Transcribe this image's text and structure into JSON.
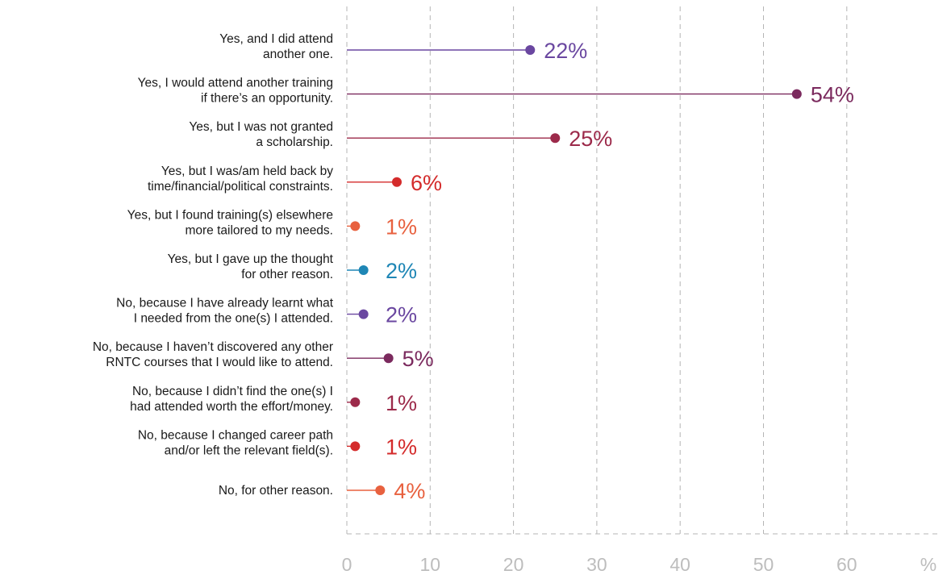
{
  "chart_data": {
    "type": "lollipop",
    "x_unit": "%",
    "xlim": [
      0,
      70
    ],
    "x_ticks": [
      0,
      10,
      20,
      30,
      40,
      50,
      60
    ],
    "grid": "vertical dashed",
    "series": [
      {
        "values": [
          {
            "label_lines": [
              "Yes, and I did attend",
              "another one."
            ],
            "value": 22,
            "value_label": "22%",
            "color": "#6a47a0"
          },
          {
            "label_lines": [
              "Yes, I would attend another training",
              "if there’s an opportunity."
            ],
            "value": 54,
            "value_label": "54%",
            "color": "#7b2a5e"
          },
          {
            "label_lines": [
              "Yes, but I was not granted",
              "a scholarship."
            ],
            "value": 25,
            "value_label": "25%",
            "color": "#9c2a4a"
          },
          {
            "label_lines": [
              "Yes, but I was/am held back by",
              "time/financial/political constraints."
            ],
            "value": 6,
            "value_label": "6%",
            "color": "#d42b2b"
          },
          {
            "label_lines": [
              "Yes, but I found training(s) elsewhere",
              "more tailored to my needs."
            ],
            "value": 1,
            "value_label": "1%",
            "color": "#e8613f"
          },
          {
            "label_lines": [
              "Yes, but I gave up the thought",
              "for other reason."
            ],
            "value": 2,
            "value_label": "2%",
            "color": "#1e86b5"
          },
          {
            "label_lines": [
              "No, because I have already learnt what",
              "I needed from the one(s) I attended."
            ],
            "value": 2,
            "value_label": "2%",
            "color": "#6a47a0"
          },
          {
            "label_lines": [
              "No, because I haven’t discovered any other",
              "RNTC courses that I would like to attend."
            ],
            "value": 5,
            "value_label": "5%",
            "color": "#7b2a5e"
          },
          {
            "label_lines": [
              "No, because I didn’t find the one(s) I",
              "had attended worth the effort/money."
            ],
            "value": 1,
            "value_label": "1%",
            "color": "#9c2a4a"
          },
          {
            "label_lines": [
              "No, because I changed career path",
              "and/or left the relevant field(s)."
            ],
            "value": 1,
            "value_label": "1%",
            "color": "#d42b2b"
          },
          {
            "label_lines": [
              "No, for other reason."
            ],
            "value": 4,
            "value_label": "4%",
            "color": "#e8613f"
          }
        ]
      }
    ],
    "colors": {
      "grid": "#b5b5b5",
      "tick_text": "#bdbdbd",
      "category_text": "#1a1a1a"
    }
  }
}
